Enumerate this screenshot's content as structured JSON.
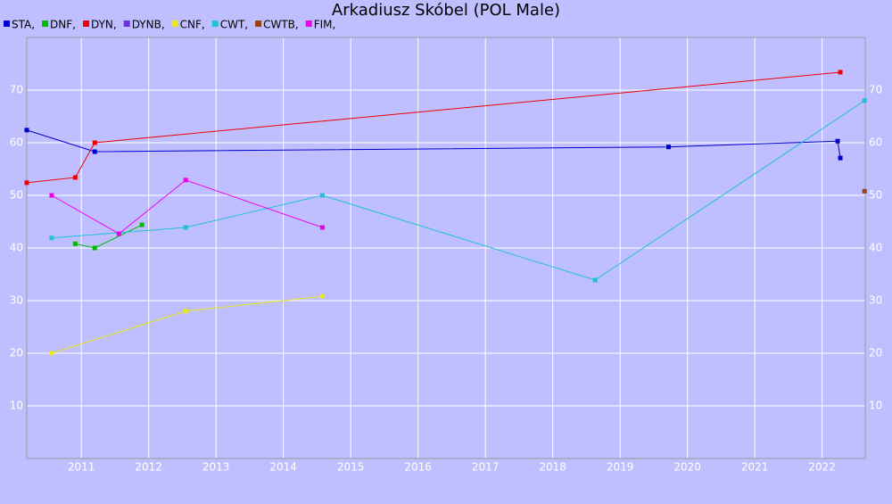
{
  "chart_data": {
    "type": "line",
    "title": "Arkadiusz Skóbel (POL Male)",
    "xlim": [
      2010.19,
      2022.64
    ],
    "xticks": [
      2011,
      2012,
      2013,
      2014,
      2015,
      2016,
      2017,
      2018,
      2019,
      2020,
      2021,
      2022
    ],
    "ylim": [
      0,
      80
    ],
    "yticks": [
      10,
      20,
      30,
      40,
      50,
      60,
      70
    ],
    "grid": true,
    "series": [
      {
        "name": "STA,",
        "color": "#0000cc",
        "x": [
          2010.19,
          2011.2,
          2019.72,
          2022.23,
          2022.27
        ],
        "values": [
          62.4,
          58.3,
          59.2,
          60.3,
          57.1
        ]
      },
      {
        "name": "DNF,",
        "color": "#00bb00",
        "x": [
          2010.91,
          2011.2,
          2011.9
        ],
        "values": [
          40.8,
          40.0,
          44.4
        ]
      },
      {
        "name": "DYN,",
        "color": "#ee0000",
        "x": [
          2010.19,
          2010.91,
          2011.2,
          2022.27
        ],
        "values": [
          52.4,
          53.4,
          60.0,
          73.4
        ]
      },
      {
        "name": "DYNB,",
        "color": "#7030e0",
        "x": [],
        "values": []
      },
      {
        "name": "CNF,",
        "color": "#e8e820",
        "x": [
          2010.56,
          2012.55,
          2014.58
        ],
        "values": [
          20.0,
          28.0,
          30.8
        ]
      },
      {
        "name": "CWT,",
        "color": "#20c0d8",
        "x": [
          2010.56,
          2012.55,
          2014.58,
          2018.63,
          2022.63
        ],
        "values": [
          41.9,
          43.9,
          50.0,
          33.9,
          68.0
        ]
      },
      {
        "name": "CWTB,",
        "color": "#a04010",
        "x": [
          2022.63
        ],
        "values": [
          50.8
        ]
      },
      {
        "name": "FIM,",
        "color": "#ee00ee",
        "x": [
          2010.56,
          2011.56,
          2012.55,
          2014.58
        ],
        "values": [
          50.0,
          42.7,
          52.9,
          43.9
        ]
      }
    ]
  }
}
